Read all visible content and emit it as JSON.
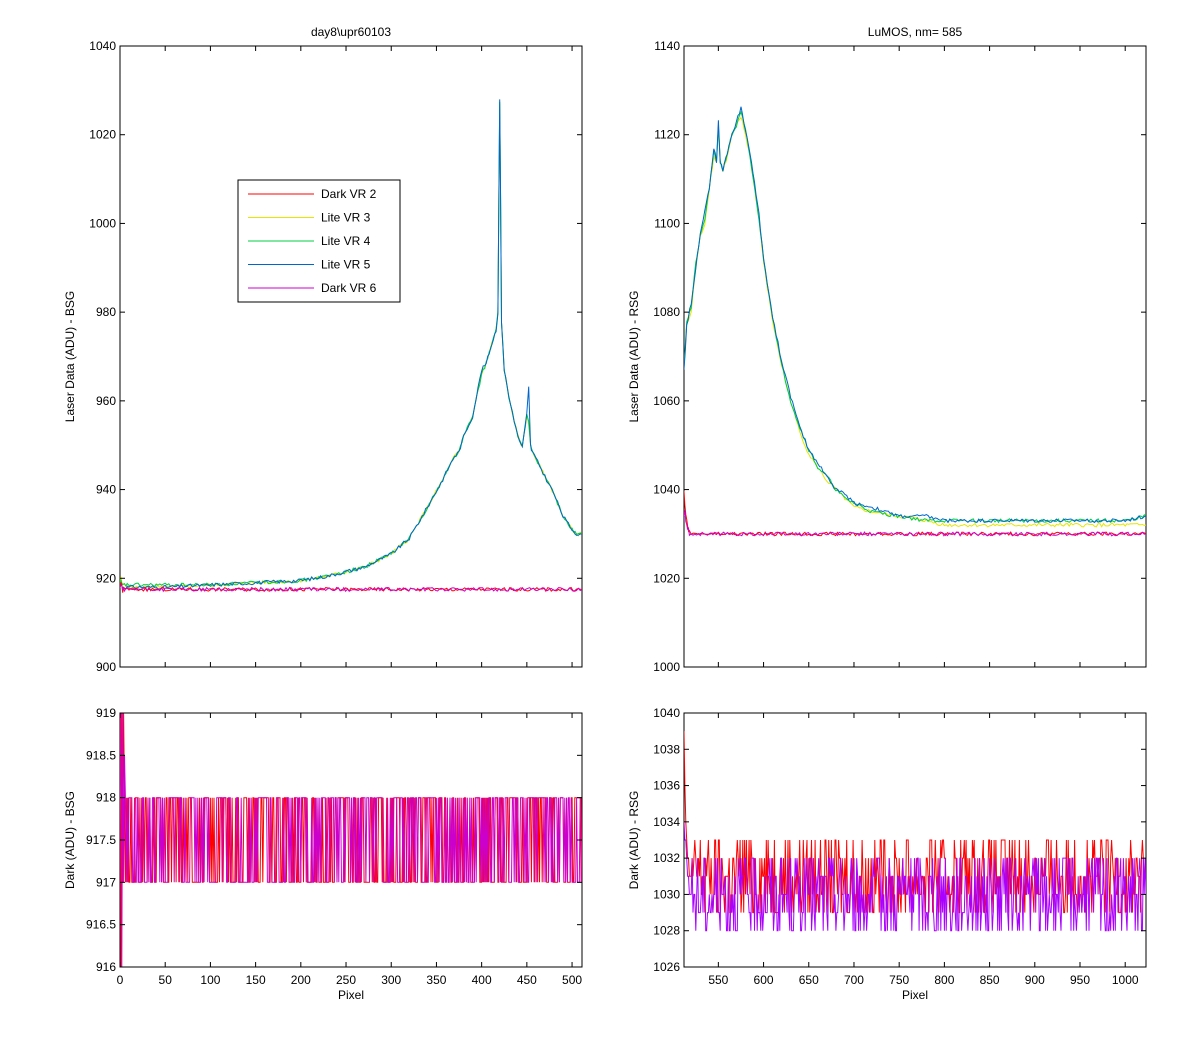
{
  "chart_data": [
    {
      "type": "line",
      "id": "bsg-laser",
      "title": "day8\\upr60103",
      "xlabel": "",
      "ylabel": "Laser Data (ADU) - BSG",
      "xlim": [
        0,
        511
      ],
      "ylim": [
        900,
        1040
      ],
      "xticks": [
        0,
        50,
        100,
        150,
        200,
        250,
        300,
        350,
        400,
        450,
        500
      ],
      "yticks": [
        900,
        920,
        940,
        960,
        980,
        1000,
        1020,
        1040
      ],
      "show_xtick_labels": false,
      "grid": false,
      "legend": {
        "placement": "upper-left",
        "entries": [
          {
            "label": "Dark VR 2",
            "color": "#ff0000"
          },
          {
            "label": "Lite VR 3",
            "color": "#e6e600"
          },
          {
            "label": "Lite VR 4",
            "color": "#00cc44"
          },
          {
            "label": "Lite VR 5",
            "color": "#0066cc"
          },
          {
            "label": "Dark VR 6",
            "color": "#cc00cc"
          }
        ]
      },
      "series": [
        {
          "name": "Lite VR 3",
          "color": "#e6e600",
          "x": [
            0,
            1,
            2,
            3,
            5,
            8,
            10,
            20,
            50,
            100,
            150,
            200,
            230,
            250,
            270,
            300,
            320,
            340,
            355,
            370,
            375,
            380,
            390,
            400,
            405,
            410,
            413,
            416,
            418,
            420,
            421,
            422,
            425,
            430,
            440,
            445,
            450,
            452,
            454,
            455,
            460,
            470,
            480,
            490,
            500,
            505,
            511
          ],
          "y": [
            918,
            920,
            919,
            918.5,
            918.5,
            918.5,
            918,
            918,
            918,
            918.5,
            919,
            919.5,
            920.5,
            921.5,
            922.5,
            925.5,
            929,
            936,
            941.5,
            947.5,
            948.5,
            952,
            956.5,
            966,
            968.5,
            972,
            974,
            976,
            980,
            1027,
            1005,
            978,
            967,
            961,
            952,
            949.5,
            957,
            955,
            950,
            949,
            947,
            943,
            939,
            934,
            931,
            930,
            930
          ]
        },
        {
          "name": "Lite VR 4",
          "color": "#00cc44",
          "x": [
            0,
            1,
            2,
            3,
            5,
            8,
            10,
            20,
            50,
            100,
            150,
            200,
            230,
            250,
            270,
            300,
            320,
            340,
            355,
            370,
            375,
            380,
            390,
            400,
            405,
            410,
            413,
            416,
            418,
            420,
            421,
            422,
            425,
            430,
            440,
            445,
            450,
            452,
            454,
            455,
            460,
            470,
            480,
            490,
            500,
            505,
            511
          ],
          "y": [
            918,
            919.5,
            918.5,
            918.5,
            918.5,
            918.5,
            918.5,
            918.5,
            918.5,
            918.5,
            919,
            919.5,
            920.5,
            921.5,
            922.5,
            925.5,
            929,
            936,
            941.5,
            947.5,
            948.5,
            952,
            956.5,
            966,
            968.5,
            972,
            974,
            976,
            980,
            1027,
            1005,
            978,
            967,
            961,
            952,
            949.5,
            957,
            955,
            950,
            949,
            947,
            943,
            939,
            934,
            931,
            930,
            930
          ]
        },
        {
          "name": "Lite VR 5",
          "color": "#0066cc",
          "x": [
            0,
            1,
            2,
            3,
            5,
            8,
            10,
            20,
            50,
            100,
            150,
            200,
            230,
            250,
            270,
            300,
            320,
            340,
            355,
            370,
            375,
            380,
            390,
            400,
            405,
            410,
            413,
            416,
            418,
            420,
            421,
            422,
            425,
            430,
            440,
            445,
            450,
            452,
            454,
            455,
            460,
            470,
            480,
            490,
            500,
            505,
            511
          ],
          "y": [
            918,
            919,
            918.5,
            918,
            918,
            918,
            918,
            918,
            918,
            918.5,
            919,
            919.5,
            920.5,
            921.5,
            922.5,
            925.5,
            929,
            936,
            941.5,
            947.5,
            948.5,
            952,
            956.5,
            967,
            968.5,
            972,
            974,
            976,
            980,
            1028,
            1005,
            978,
            967,
            961,
            952,
            949.5,
            957,
            963,
            950,
            949,
            947,
            943,
            939,
            934,
            931,
            930,
            930
          ]
        },
        {
          "name": "Dark VR 2",
          "color": "#ff0000",
          "x": [
            0,
            1,
            2,
            3,
            4,
            5,
            6,
            511
          ],
          "y": [
            918,
            919,
            918.5,
            917,
            918,
            917.5,
            917.5,
            917.5
          ]
        },
        {
          "name": "Dark VR 6",
          "color": "#cc00cc",
          "x": [
            0,
            1,
            2,
            3,
            4,
            5,
            6,
            511
          ],
          "y": [
            918,
            918.5,
            918,
            917,
            917.5,
            917,
            917.5,
            917.5
          ]
        }
      ]
    },
    {
      "type": "line",
      "id": "rsg-laser",
      "title": "LuMOS, nm= 585",
      "xlabel": "",
      "ylabel": "Laser Data (ADU) - RSG",
      "xlim": [
        512,
        1023
      ],
      "ylim": [
        1000,
        1140
      ],
      "xticks": [
        550,
        600,
        650,
        700,
        750,
        800,
        850,
        900,
        950,
        1000
      ],
      "yticks": [
        1000,
        1020,
        1040,
        1060,
        1080,
        1100,
        1120,
        1140
      ],
      "show_xtick_labels": false,
      "grid": false,
      "series": [
        {
          "name": "Lite VR 3",
          "color": "#e6e600",
          "x": [
            512,
            515,
            520,
            525,
            530,
            535,
            540,
            545,
            548,
            550,
            552,
            555,
            560,
            565,
            570,
            575,
            580,
            585,
            590,
            595,
            600,
            610,
            620,
            630,
            640,
            650,
            660,
            670,
            680,
            690,
            700,
            720,
            750,
            780,
            800,
            850,
            900,
            950,
            1000,
            1023
          ],
          "y": [
            1068,
            1077,
            1080,
            1090,
            1097,
            1100,
            1108,
            1115,
            1114,
            1122,
            1114,
            1112,
            1115,
            1120,
            1122,
            1124,
            1120,
            1115,
            1108,
            1101,
            1091,
            1078,
            1068,
            1060,
            1053,
            1048,
            1045,
            1042,
            1040,
            1038,
            1036,
            1035,
            1034,
            1033,
            1032,
            1032,
            1032,
            1032,
            1032,
            1032
          ]
        },
        {
          "name": "Lite VR 4",
          "color": "#00cc44",
          "x": [
            512,
            515,
            520,
            525,
            530,
            535,
            540,
            545,
            548,
            550,
            552,
            555,
            560,
            565,
            570,
            575,
            580,
            585,
            590,
            595,
            600,
            610,
            620,
            630,
            640,
            650,
            660,
            670,
            680,
            690,
            700,
            720,
            750,
            780,
            800,
            850,
            900,
            950,
            1000,
            1023
          ],
          "y": [
            1068,
            1078,
            1081,
            1091,
            1097,
            1101,
            1108,
            1116,
            1114,
            1122,
            1114,
            1112,
            1116,
            1120,
            1122,
            1125,
            1121,
            1115,
            1108,
            1101,
            1092,
            1079,
            1068,
            1060,
            1054,
            1049,
            1045,
            1043,
            1040,
            1038,
            1037,
            1035,
            1034,
            1033,
            1033,
            1033,
            1033,
            1033,
            1033,
            1034
          ]
        },
        {
          "name": "Lite VR 5",
          "color": "#0066cc",
          "x": [
            512,
            515,
            520,
            525,
            530,
            535,
            540,
            545,
            548,
            550,
            552,
            555,
            560,
            565,
            570,
            575,
            580,
            585,
            590,
            595,
            600,
            610,
            620,
            630,
            640,
            650,
            660,
            670,
            680,
            690,
            700,
            720,
            750,
            780,
            800,
            850,
            900,
            950,
            1000,
            1023
          ],
          "y": [
            1067,
            1077,
            1082,
            1090,
            1098,
            1103,
            1108,
            1117,
            1114,
            1123,
            1114,
            1112,
            1116,
            1120,
            1123,
            1126,
            1121,
            1116,
            1109,
            1102,
            1092,
            1079,
            1069,
            1061,
            1054,
            1049,
            1046,
            1043,
            1040,
            1039,
            1037,
            1036,
            1034,
            1034,
            1033,
            1033,
            1033,
            1033,
            1033,
            1034
          ]
        },
        {
          "name": "Dark VR 2",
          "color": "#ff0000",
          "x": [
            512,
            513,
            514,
            515,
            516,
            517,
            518,
            520,
            1023
          ],
          "y": [
            1040,
            1036,
            1034,
            1033,
            1032,
            1031,
            1031,
            1030,
            1030
          ]
        },
        {
          "name": "Dark VR 6",
          "color": "#cc00cc",
          "x": [
            512,
            513,
            514,
            515,
            516,
            517,
            518,
            520,
            1023
          ],
          "y": [
            1034,
            1035,
            1033,
            1032,
            1031,
            1031,
            1030,
            1030,
            1030
          ]
        }
      ]
    },
    {
      "type": "line",
      "id": "bsg-dark",
      "title": "",
      "xlabel": "Pixel",
      "ylabel": "Dark (ADU) - BSG",
      "xlim": [
        0,
        511
      ],
      "ylim": [
        916,
        919
      ],
      "xticks": [
        0,
        50,
        100,
        150,
        200,
        250,
        300,
        350,
        400,
        450,
        500
      ],
      "yticks": [
        916,
        916.5,
        917,
        917.5,
        918,
        918.5,
        919
      ],
      "show_xtick_labels": true,
      "grid": false,
      "series": [
        {
          "name": "Dark VR 2",
          "color": "#ff0000",
          "x": [
            0,
            1,
            2,
            3,
            4,
            5,
            6,
            7,
            8,
            9,
            10
          ],
          "y": [
            919,
            916,
            919,
            917,
            919,
            918,
            917,
            918,
            917,
            918,
            917
          ],
          "noise_band": [
            917,
            918
          ],
          "noise_x": [
            10,
            511
          ]
        },
        {
          "name": "Dark VR 6",
          "color": "#cc00cc",
          "x": [
            0,
            1,
            2,
            3,
            4,
            5,
            6,
            7,
            8,
            9,
            10
          ],
          "y": [
            918,
            919,
            916,
            919,
            917,
            918.5,
            918,
            917,
            918,
            917,
            918
          ],
          "noise_band": [
            917,
            918
          ],
          "noise_x": [
            10,
            511
          ]
        }
      ]
    },
    {
      "type": "line",
      "id": "rsg-dark",
      "title": "",
      "xlabel": "Pixel",
      "ylabel": "Dark (ADU) - RSG",
      "xlim": [
        512,
        1023
      ],
      "ylim": [
        1026,
        1040
      ],
      "xticks": [
        550,
        600,
        650,
        700,
        750,
        800,
        850,
        900,
        950,
        1000
      ],
      "yticks": [
        1026,
        1028,
        1030,
        1032,
        1034,
        1036,
        1038,
        1040
      ],
      "show_xtick_labels": true,
      "grid": false,
      "series": [
        {
          "name": "Dark VR 2",
          "color": "#ff0000",
          "x": [
            512,
            513,
            514,
            515,
            516,
            517,
            518,
            520
          ],
          "y": [
            1039,
            1036,
            1034,
            1033,
            1032,
            1032,
            1031,
            1031
          ],
          "noise_band": [
            1029,
            1033
          ],
          "noise_x": [
            520,
            1023
          ]
        },
        {
          "name": "Dark VR 6",
          "color": "#aa00ff",
          "x": [
            512,
            513,
            514,
            515,
            516,
            517,
            518,
            520
          ],
          "y": [
            1034,
            1033,
            1033,
            1032,
            1031,
            1031,
            1030,
            1030
          ],
          "noise_band": [
            1028,
            1032
          ],
          "noise_x": [
            520,
            1023
          ]
        }
      ]
    }
  ]
}
